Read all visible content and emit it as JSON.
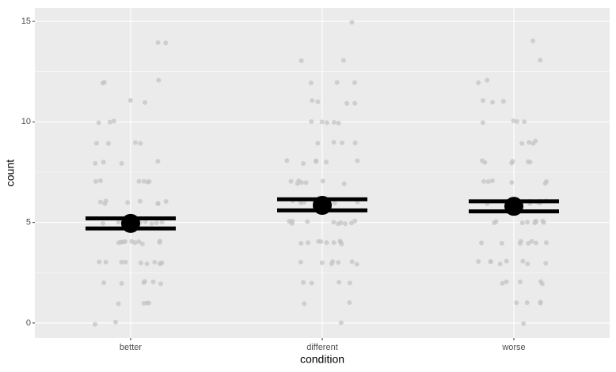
{
  "chart_data": {
    "type": "scatter",
    "x_label": "condition",
    "y_label": "count",
    "categories": [
      "better",
      "different",
      "worse"
    ],
    "point_values": [
      [
        0,
        0,
        1,
        1,
        1,
        1,
        2,
        2,
        2,
        2,
        2,
        2,
        3,
        3,
        3,
        3,
        3,
        3,
        3,
        3,
        3,
        3,
        4,
        4,
        4,
        4,
        4,
        4,
        4,
        4,
        4,
        4,
        4,
        5,
        5,
        5,
        5,
        5,
        5,
        5,
        5,
        5,
        6,
        6,
        6,
        6,
        6,
        6,
        6,
        6,
        7,
        7,
        7,
        7,
        7,
        7,
        8,
        8,
        8,
        8,
        9,
        9,
        9,
        9,
        10,
        10,
        10,
        11,
        11,
        12,
        12,
        12,
        14,
        14
      ],
      [
        0,
        1,
        1,
        2,
        2,
        2,
        2,
        3,
        3,
        3,
        3,
        3,
        3,
        3,
        4,
        4,
        4,
        4,
        4,
        4,
        4,
        4,
        4,
        5,
        5,
        5,
        5,
        5,
        5,
        5,
        5,
        5,
        5,
        6,
        6,
        6,
        6,
        6,
        6,
        6,
        6,
        7,
        7,
        7,
        7,
        7,
        7,
        7,
        8,
        8,
        8,
        8,
        8,
        8,
        9,
        9,
        9,
        9,
        10,
        10,
        10,
        10,
        10,
        11,
        11,
        11,
        11,
        12,
        12,
        12,
        13,
        13,
        15
      ],
      [
        0,
        1,
        1,
        1,
        1,
        2,
        2,
        2,
        2,
        2,
        3,
        3,
        3,
        3,
        3,
        3,
        3,
        3,
        4,
        4,
        4,
        4,
        4,
        4,
        4,
        4,
        5,
        5,
        5,
        5,
        5,
        5,
        5,
        5,
        5,
        6,
        6,
        6,
        6,
        6,
        6,
        6,
        7,
        7,
        7,
        7,
        7,
        7,
        8,
        8,
        8,
        8,
        8,
        8,
        9,
        9,
        9,
        9,
        10,
        10,
        10,
        10,
        11,
        11,
        11,
        12,
        12,
        13,
        14
      ]
    ],
    "point_color": "#c4c4c4",
    "means": [
      4.95,
      5.85,
      5.8
    ],
    "ci_upper": [
      5.2,
      6.15,
      6.05
    ],
    "ci_lower": [
      4.7,
      5.6,
      5.55
    ],
    "mark_color": "#000000",
    "ylim": [
      -0.75,
      15.67
    ],
    "yticks": [
      0,
      5,
      10,
      15
    ],
    "y_minor_grid": [
      2.5,
      7.5,
      12.5
    ],
    "grid": true
  }
}
